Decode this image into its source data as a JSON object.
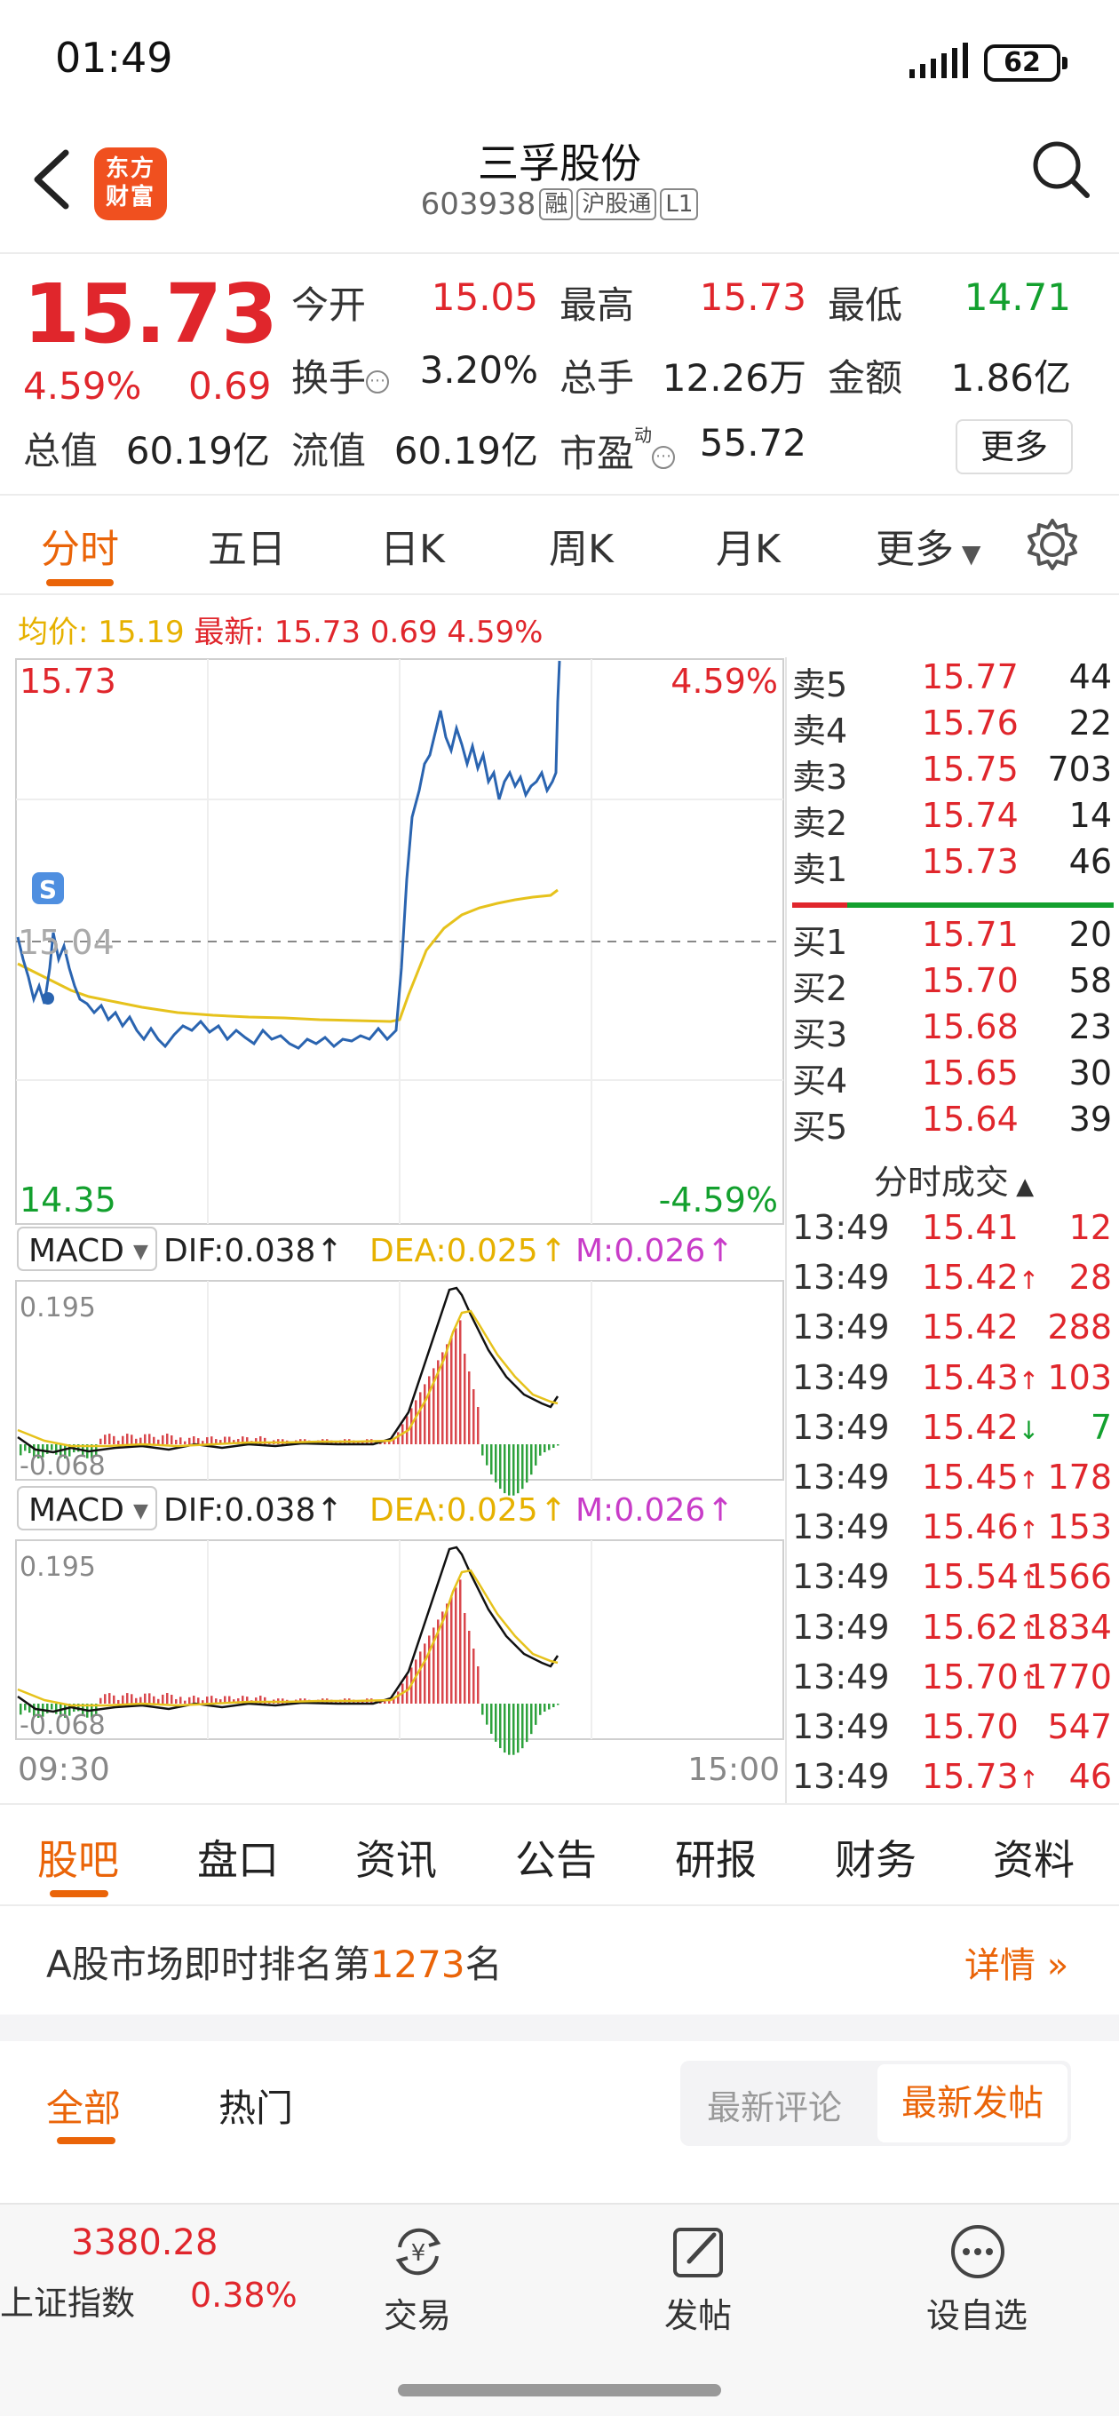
{
  "status": {
    "time": "01:49",
    "battery": "62"
  },
  "header": {
    "logo_line1": "东方",
    "logo_line2": "财富",
    "name": "三孚股份",
    "code": "603938",
    "tags": [
      "融",
      "沪股通",
      "L1"
    ]
  },
  "quote": {
    "price": "15.73",
    "pct": "4.59%",
    "change": "0.69",
    "open_label": "今开",
    "open": "15.05",
    "high_label": "最高",
    "high": "15.73",
    "low_label": "最低",
    "low": "14.71",
    "turnover_label": "换手",
    "turnover": "3.20%",
    "volume_label": "总手",
    "volume": "12.26万",
    "amount_label": "金额",
    "amount": "1.86亿",
    "mktcap_label": "总值",
    "mktcap": "60.19亿",
    "float_label": "流值",
    "float": "60.19亿",
    "pe_label": "市盈",
    "pe_sup": "动",
    "pe": "55.72",
    "more": "更多"
  },
  "period_tabs": [
    "分时",
    "五日",
    "日K",
    "周K",
    "月K",
    "更多"
  ],
  "avg_line": {
    "avg_label": "均价:",
    "avg": "15.19",
    "latest_label": "最新:",
    "latest": "15.73",
    "change": "0.69",
    "pct": "4.59%"
  },
  "chart": {
    "top_price": "15.73",
    "mid_price": "15.04",
    "bottom_price": "14.35",
    "top_pct": "4.59%",
    "bottom_pct": "-4.59%",
    "start_time": "09:30",
    "end_time": "15:00",
    "s_badge": "S"
  },
  "macd": {
    "label": "MACD",
    "dif": "DIF:0.038",
    "dea": "DEA:0.025",
    "m": "M:0.026",
    "max": "0.195",
    "min": "-0.068"
  },
  "order_book": {
    "asks": [
      {
        "label": "卖5",
        "price": "15.77",
        "vol": "44"
      },
      {
        "label": "卖4",
        "price": "15.76",
        "vol": "22"
      },
      {
        "label": "卖3",
        "price": "15.75",
        "vol": "703"
      },
      {
        "label": "卖2",
        "price": "15.74",
        "vol": "14"
      },
      {
        "label": "卖1",
        "price": "15.73",
        "vol": "46"
      }
    ],
    "bids": [
      {
        "label": "买1",
        "price": "15.71",
        "vol": "20"
      },
      {
        "label": "买2",
        "price": "15.70",
        "vol": "58"
      },
      {
        "label": "买3",
        "price": "15.68",
        "vol": "23"
      },
      {
        "label": "买4",
        "price": "15.65",
        "vol": "30"
      },
      {
        "label": "买5",
        "price": "15.64",
        "vol": "39"
      }
    ]
  },
  "trades": {
    "title": "分时成交",
    "rows": [
      {
        "time": "13:49",
        "price": "15.41",
        "arrow": "",
        "vol": "12",
        "color": "#e0262c"
      },
      {
        "time": "13:49",
        "price": "15.42",
        "arrow": "↑",
        "vol": "28",
        "color": "#e0262c"
      },
      {
        "time": "13:49",
        "price": "15.42",
        "arrow": "",
        "vol": "288",
        "color": "#e0262c"
      },
      {
        "time": "13:49",
        "price": "15.43",
        "arrow": "↑",
        "vol": "103",
        "color": "#e0262c"
      },
      {
        "time": "13:49",
        "price": "15.42",
        "arrow": "↓",
        "vol": "7",
        "color": "#13a02e"
      },
      {
        "time": "13:49",
        "price": "15.45",
        "arrow": "↑",
        "vol": "178",
        "color": "#e0262c"
      },
      {
        "time": "13:49",
        "price": "15.46",
        "arrow": "↑",
        "vol": "153",
        "color": "#e0262c"
      },
      {
        "time": "13:49",
        "price": "15.54",
        "arrow": "↑",
        "vol": "1566",
        "color": "#e0262c"
      },
      {
        "time": "13:49",
        "price": "15.62",
        "arrow": "↑",
        "vol": "1834",
        "color": "#e0262c"
      },
      {
        "time": "13:49",
        "price": "15.70",
        "arrow": "↑",
        "vol": "1770",
        "color": "#e0262c"
      },
      {
        "time": "13:49",
        "price": "15.70",
        "arrow": "",
        "vol": "547",
        "color": "#e0262c"
      },
      {
        "time": "13:49",
        "price": "15.73",
        "arrow": "↑",
        "vol": "46",
        "color": "#e0262c"
      }
    ]
  },
  "bottom_tabs": [
    "股吧",
    "盘口",
    "资讯",
    "公告",
    "研报",
    "财务",
    "资料"
  ],
  "rank": {
    "prefix": "A股市场即时排名第",
    "rank": "1273",
    "suffix": "名",
    "details": "详情"
  },
  "feed": {
    "all": "全部",
    "hot": "热门",
    "sort_comment": "最新评论",
    "sort_post": "最新发帖"
  },
  "bottom_nav": {
    "index_value": "3380.28",
    "index_name": "上证指数",
    "index_pct": "0.38%",
    "trade": "交易",
    "post": "发帖",
    "watchlist": "设自选"
  },
  "colors": {
    "up": "#e0262c",
    "down": "#13a02e",
    "accent": "#ea6408",
    "price_line": "#2a64b0",
    "avg_line": "#e6c21c"
  }
}
